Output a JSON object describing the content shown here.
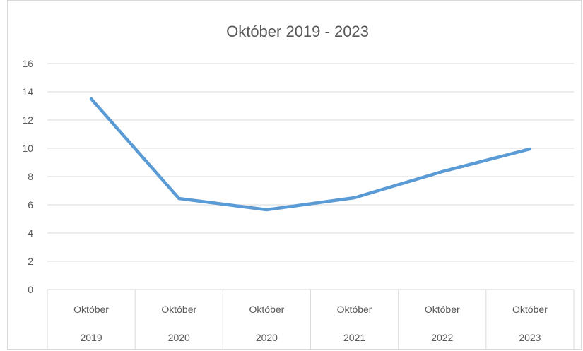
{
  "chart_data": {
    "type": "line",
    "title": "Október 2019 - 2023",
    "categories": [
      [
        "Október",
        "2019"
      ],
      [
        "Október",
        "2020"
      ],
      [
        "Október",
        "2020"
      ],
      [
        "Október",
        "2021"
      ],
      [
        "Október",
        "2022"
      ],
      [
        "Október",
        "2023"
      ]
    ],
    "series": [
      {
        "values": [
          13.5,
          6.45,
          5.65,
          6.5,
          8.35,
          9.95
        ],
        "color": "#5b9bd5"
      }
    ],
    "ylim": [
      0,
      16
    ],
    "yticks": [
      0,
      2,
      4,
      6,
      8,
      10,
      12,
      14,
      16
    ],
    "grid": true,
    "legend": "none"
  }
}
